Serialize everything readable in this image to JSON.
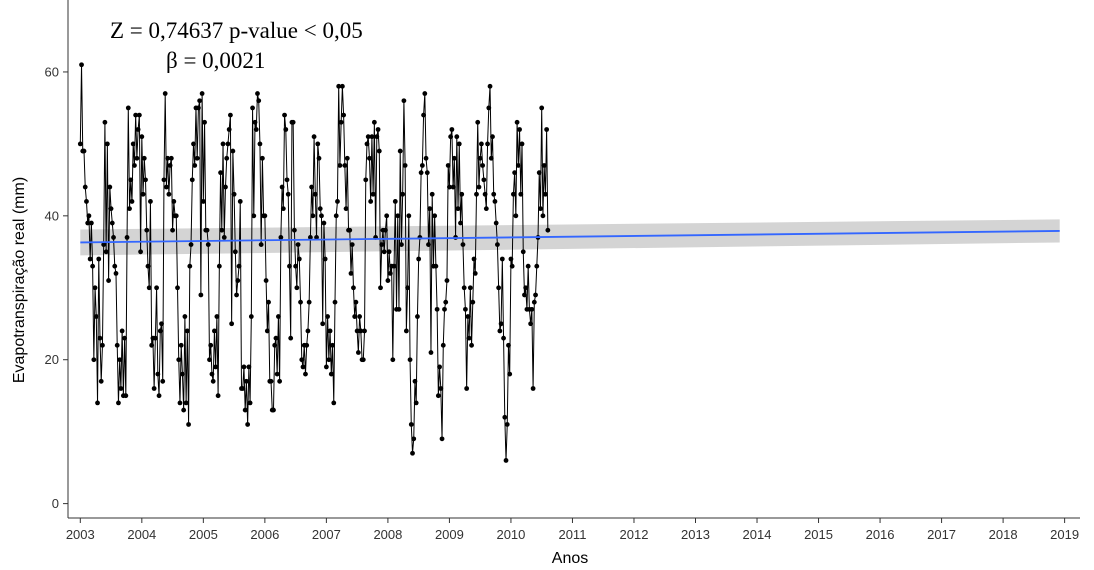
{
  "annotations": {
    "stat_line": "Z = 0,74637 p-value < 0,05",
    "beta_line": "β = 0,0021"
  },
  "colors": {
    "series": "#000000",
    "trend": "#3366ff",
    "band": "#cccccc",
    "axis": "#333333"
  },
  "chart_data": {
    "type": "line",
    "title": "",
    "xlabel": "Anos",
    "ylabel": "Evapotranspiração real (mm)",
    "xlim": [
      2002.8,
      2019.25
    ],
    "ylim": [
      -2,
      70
    ],
    "grid": false,
    "x_ticks": [
      2003,
      2004,
      2005,
      2006,
      2007,
      2008,
      2009,
      2010,
      2011,
      2012,
      2013,
      2014,
      2015,
      2016,
      2017,
      2018,
      2019
    ],
    "y_ticks": [
      0,
      20,
      40,
      60
    ],
    "trend": {
      "x": [
        2003.0,
        2018.92
      ],
      "y": [
        36.3,
        37.9
      ],
      "band_lower": [
        34.5,
        36.3
      ],
      "band_upper": [
        38.1,
        39.5
      ]
    },
    "series": [
      {
        "x_start": 2003.0,
        "x_step": 0.02,
        "values": [
          50,
          61,
          49,
          49,
          44,
          42,
          39,
          40,
          34,
          39,
          33,
          20,
          30,
          26,
          14,
          34,
          23,
          17,
          22,
          36,
          53,
          35,
          50,
          31,
          44,
          41,
          39,
          37,
          33,
          32,
          22,
          14,
          20,
          16,
          24,
          15,
          23,
          15,
          37,
          55,
          41,
          45,
          42,
          50,
          47,
          54,
          48,
          52,
          54,
          35,
          51,
          43,
          48,
          45,
          38,
          33,
          30,
          42,
          22,
          23,
          16,
          23,
          30,
          18,
          15,
          24,
          25,
          17,
          45,
          57,
          44,
          48,
          43,
          47,
          48,
          38,
          42,
          40,
          40,
          30,
          20,
          14,
          22,
          18,
          13,
          26,
          14,
          24,
          11,
          33,
          36,
          45,
          50,
          47,
          55,
          48,
          55,
          56,
          29,
          57,
          42,
          53,
          38,
          38,
          36,
          20,
          22,
          18,
          17,
          24,
          19,
          26,
          15,
          33,
          46,
          38,
          50,
          37,
          44,
          48,
          50,
          52,
          54,
          25,
          49,
          43,
          35,
          29,
          31,
          33,
          42,
          16,
          16,
          19,
          13,
          17,
          11,
          19,
          14,
          26,
          55,
          40,
          53,
          52,
          57,
          56,
          50,
          36,
          48,
          40,
          40,
          31,
          24,
          28,
          17,
          17,
          13,
          13,
          22,
          23,
          18,
          26,
          17,
          37,
          44,
          41,
          54,
          52,
          45,
          43,
          33,
          23,
          53,
          53,
          38,
          33,
          30,
          36,
          34,
          28,
          20,
          19,
          22,
          18,
          22,
          24,
          28,
          37,
          44,
          40,
          51,
          43,
          37,
          50,
          48,
          41,
          40,
          25,
          39,
          34,
          19,
          26,
          20,
          24,
          18,
          22,
          14,
          28,
          40,
          42,
          58,
          47,
          53,
          58,
          54,
          47,
          41,
          48,
          38,
          38,
          32,
          36,
          30,
          26,
          28,
          24,
          21,
          26,
          24,
          20,
          20,
          24,
          45,
          50,
          51,
          48,
          42,
          51,
          43,
          53,
          37,
          51,
          52,
          49,
          30,
          36,
          38,
          35,
          38,
          40,
          31,
          35,
          32,
          33,
          20,
          33,
          42,
          27,
          40,
          27,
          49,
          36,
          43,
          56,
          47,
          24,
          30,
          40,
          20,
          11,
          7,
          9,
          17,
          14,
          26,
          34,
          37,
          46,
          47,
          54,
          57,
          48,
          46,
          36,
          41,
          21,
          43,
          33,
          40,
          33,
          27,
          15,
          19,
          16,
          9,
          22,
          27,
          28,
          31,
          47,
          44,
          51,
          52,
          44,
          48,
          37,
          51,
          41,
          50,
          39,
          43,
          36,
          30,
          27,
          16,
          26,
          23,
          30,
          22,
          28,
          34,
          32,
          43,
          53,
          44,
          48,
          50,
          47,
          45,
          43,
          41,
          50,
          55,
          58,
          48,
          51,
          43,
          42,
          39,
          36,
          30,
          24,
          25,
          34,
          23,
          12,
          6,
          11,
          22,
          18,
          34,
          33,
          43,
          46,
          40,
          53,
          47,
          52,
          43,
          50,
          35,
          29,
          30,
          27,
          33,
          27,
          25,
          27,
          16,
          28,
          29,
          33,
          37,
          46,
          41,
          55,
          40,
          47,
          43,
          52,
          38
        ]
      }
    ]
  }
}
